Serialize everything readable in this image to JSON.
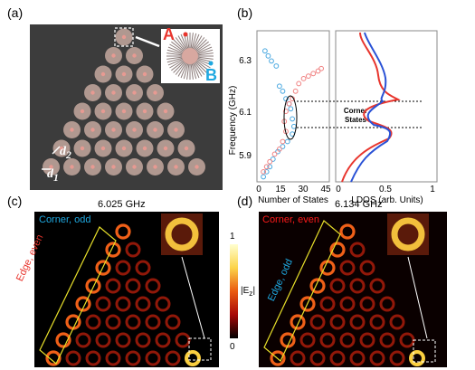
{
  "panels": {
    "a": {
      "label": "(a)",
      "marker_A": "A",
      "marker_B": "B",
      "d1": "d",
      "d1_sub": "1",
      "d2": "d",
      "d2_sub": "2"
    },
    "b": {
      "label": "(b)",
      "yaxis_label": "Frequency (GHz)",
      "yticks": [
        "6.3",
        "6.1",
        "5.9"
      ],
      "xticks_left": [
        "0",
        "15",
        "30",
        "45"
      ],
      "xlabel_left": "Number of States",
      "xticks_right": [
        "0",
        "0.5",
        "1"
      ],
      "xlabel_right": "LDOS (arb. Units)",
      "annotation": [
        "Corner",
        "States"
      ]
    },
    "c": {
      "label": "(c)",
      "title": "6.025 GHz",
      "corner_text": "Corner, odd",
      "edge_text": "Edge, even"
    },
    "d": {
      "label": "(d)",
      "title": "6.134 GHz",
      "corner_text": "Corner, even",
      "edge_text": "Edge, odd"
    },
    "colorbar": {
      "max": "1",
      "min": "0",
      "label": "|E",
      "label_sub": "z",
      "label_end": "|"
    }
  },
  "colors": {
    "corner_odd_text": "#1fa8e0",
    "edge_even_text": "#e8352d",
    "corner_even_text": "#ff1a1a",
    "edge_odd_text": "#1fa8e0",
    "marker_A": "#e8352d",
    "marker_B": "#1fa8e0",
    "highlight_box": "#e8e02a"
  },
  "chart_data": {
    "type": "scatter",
    "ylabel": "Frequency (GHz)",
    "xlabel": "Number of States",
    "xlim": [
      0,
      45
    ],
    "ylim": [
      5.8,
      6.4
    ],
    "series": [
      {
        "color": "#4aa8e0",
        "points": [
          [
            5,
            6.32
          ],
          [
            7,
            6.3
          ],
          [
            9,
            6.28
          ],
          [
            12,
            6.26
          ],
          [
            14,
            6.18
          ],
          [
            16,
            6.16
          ],
          [
            18,
            6.13
          ],
          [
            20,
            6.11
          ],
          [
            21,
            6.09
          ],
          [
            22,
            6.05
          ],
          [
            23,
            6.02
          ],
          [
            22,
            5.99
          ],
          [
            19,
            5.96
          ],
          [
            16,
            5.94
          ],
          [
            13,
            5.92
          ],
          [
            10,
            5.89
          ],
          [
            8,
            5.86
          ],
          [
            6,
            5.84
          ],
          [
            4,
            5.82
          ]
        ]
      },
      {
        "color": "#f08080",
        "points": [
          [
            40,
            6.25
          ],
          [
            38,
            6.24
          ],
          [
            35,
            6.23
          ],
          [
            32,
            6.22
          ],
          [
            29,
            6.21
          ],
          [
            26,
            6.19
          ],
          [
            24,
            6.16
          ],
          [
            22,
            6.13
          ],
          [
            20,
            6.11
          ],
          [
            18,
            6.08
          ],
          [
            17,
            6.04
          ],
          [
            18,
            6.0
          ],
          [
            16,
            5.96
          ],
          [
            14,
            5.93
          ],
          [
            11,
            5.91
          ],
          [
            8,
            5.88
          ],
          [
            6,
            5.86
          ],
          [
            4,
            5.84
          ]
        ]
      }
    ]
  }
}
